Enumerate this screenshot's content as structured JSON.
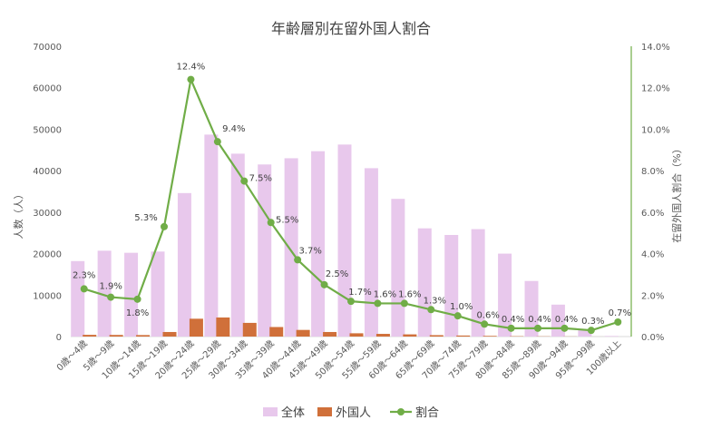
{
  "chart_data": {
    "type": "bar",
    "title": "年齢層別在留外国人割合",
    "ylabel": "人数（人）",
    "y2label": "在留外国人割合（%）",
    "ylim": [
      0,
      70000
    ],
    "y2lim": [
      0,
      14
    ],
    "yticks": [
      "0",
      "10000",
      "20000",
      "30000",
      "40000",
      "50000",
      "60000",
      "70000"
    ],
    "y2ticks": [
      "0.0%",
      "2.0%",
      "4.0%",
      "6.0%",
      "8.0%",
      "10.0%",
      "12.0%",
      "14.0%"
    ],
    "grid": false,
    "legend_position": "bottom",
    "categories": [
      "0歳～4歳",
      "5歳～9歳",
      "10歳～14歳",
      "15歳～19歳",
      "20歳～24歳",
      "25歳～29歳",
      "30歳～34歳",
      "35歳～39歳",
      "40歳～44歳",
      "45歳～49歳",
      "50歳～54歳",
      "55歳～59歳",
      "60歳～64歳",
      "65歳～69歳",
      "70歳～74歳",
      "75歳～79歳",
      "80歳～84歳",
      "85歳～89歳",
      "90歳～94歳",
      "95歳～99歳",
      "100歳以上"
    ],
    "series": [
      {
        "name": "全体",
        "kind": "bar",
        "axis": "left",
        "color": "#e8c8ec",
        "values": [
          18200,
          20700,
          20200,
          20500,
          34600,
          48700,
          44100,
          41500,
          43000,
          44700,
          46300,
          40600,
          33200,
          26100,
          24500,
          25900,
          20000,
          13400,
          7700,
          1700,
          150
        ]
      },
      {
        "name": "外国人",
        "kind": "bar",
        "axis": "left",
        "color": "#d0703a",
        "values": [
          420,
          390,
          360,
          1100,
          4300,
          4600,
          3300,
          2300,
          1600,
          1100,
          790,
          650,
          530,
          340,
          250,
          160,
          80,
          50,
          30,
          5,
          1
        ]
      },
      {
        "name": "割合",
        "kind": "line",
        "axis": "right",
        "color": "#70ad47",
        "values": [
          2.3,
          1.9,
          1.8,
          5.3,
          12.4,
          9.4,
          7.5,
          5.5,
          3.7,
          2.5,
          1.7,
          1.6,
          1.6,
          1.3,
          1.0,
          0.6,
          0.4,
          0.4,
          0.4,
          0.3,
          0.7
        ],
        "labels": [
          "2.3%",
          "1.9%",
          "1.8%",
          "5.3%",
          "12.4%",
          "9.4%",
          "7.5%",
          "5.5%",
          "3.7%",
          "2.5%",
          "1.7%",
          "1.6%",
          "1.6%",
          "1.3%",
          "1.0%",
          "0.6%",
          "0.4%",
          "0.4%",
          "0.4%",
          "0.3%",
          "0.7%"
        ]
      }
    ]
  }
}
